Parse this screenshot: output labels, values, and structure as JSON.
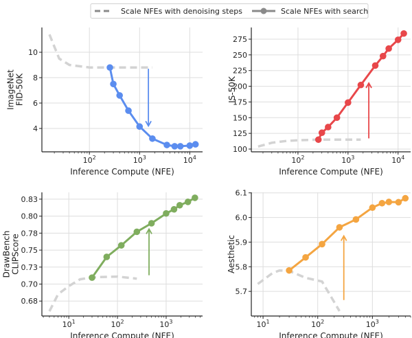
{
  "legend": {
    "placement": "top-center",
    "entries": [
      {
        "label": "Scale NFEs with denoising steps",
        "style": "dashed",
        "color": "#c8c8c8"
      },
      {
        "label": "Scale NFEs with search",
        "style": "line-marker",
        "color": "#8a8a8a"
      }
    ]
  },
  "chart_data": [
    {
      "type": "line",
      "xlabel": "Inference Compute (NFE)",
      "ylabel": [
        "ImageNet",
        "FID-50K"
      ],
      "xscale": "log",
      "xlim": [
        11.3,
        18000
      ],
      "ylim": [
        2.16,
        11.95
      ],
      "xticks": [
        {
          "value": 100,
          "base": "10",
          "exp": "2"
        },
        {
          "value": 1000,
          "base": "10",
          "exp": "3"
        },
        {
          "value": 10000,
          "base": "10",
          "exp": "4"
        }
      ],
      "yticks": [
        {
          "value": 4,
          "label": "4"
        },
        {
          "value": 6,
          "label": "6"
        },
        {
          "value": 8,
          "label": "8"
        },
        {
          "value": 10,
          "label": "10"
        }
      ],
      "grid": true,
      "color": "#5b8def",
      "series": [
        {
          "style": "dashed",
          "x": [
            16,
            25,
            40,
            100,
            250,
            1800
          ],
          "y": [
            11.4,
            9.5,
            9.0,
            8.8,
            8.8,
            8.8
          ]
        },
        {
          "style": "line-marker",
          "x": [
            256,
            300,
            400,
            600,
            1000,
            1800,
            3500,
            5000,
            6500,
            10000,
            13000
          ],
          "y": [
            8.8,
            7.5,
            6.6,
            5.4,
            4.15,
            3.2,
            2.7,
            2.6,
            2.6,
            2.65,
            2.75
          ]
        }
      ],
      "arrow": {
        "x": 1500,
        "y_from": 8.7,
        "y_to": 4.2
      }
    },
    {
      "type": "line",
      "xlabel": "Inference Compute (NFE)",
      "ylabel": [
        "IS-50K"
      ],
      "xscale": "log",
      "xlim": [
        11.7,
        17800
      ],
      "ylim": [
        95.6,
        293.6
      ],
      "xticks": [
        {
          "value": 100,
          "base": "10",
          "exp": "2"
        },
        {
          "value": 1000,
          "base": "10",
          "exp": "3"
        },
        {
          "value": 10000,
          "base": "10",
          "exp": "4"
        }
      ],
      "yticks": [
        {
          "value": 100,
          "label": "100"
        },
        {
          "value": 125,
          "label": "125"
        },
        {
          "value": 150,
          "label": "150"
        },
        {
          "value": 175,
          "label": "175"
        },
        {
          "value": 200,
          "label": "200"
        },
        {
          "value": 225,
          "label": "225"
        },
        {
          "value": 250,
          "label": "250"
        },
        {
          "value": 275,
          "label": "275"
        }
      ],
      "grid": true,
      "color": "#e8474a",
      "series": [
        {
          "style": "dashed",
          "x": [
            16,
            30,
            60,
            100,
            250,
            1800
          ],
          "y": [
            104,
            110,
            113,
            114,
            115,
            115
          ]
        },
        {
          "style": "line-marker",
          "x": [
            256,
            300,
            400,
            600,
            1000,
            1800,
            3500,
            5000,
            6500,
            10000,
            13000
          ],
          "y": [
            115,
            126,
            135,
            150,
            174,
            202,
            233,
            248,
            260,
            274,
            284
          ]
        }
      ],
      "arrow": {
        "x": 2600,
        "y_from": 117,
        "y_to": 205
      }
    },
    {
      "type": "line",
      "xlabel": "Inference Compute (NFE)",
      "ylabel": [
        "DrawBench",
        "CLIPScore"
      ],
      "xscale": "log",
      "xlim": [
        2.8,
        5600
      ],
      "ylim": [
        0.653,
        0.835
      ],
      "xticks": [
        {
          "value": 10,
          "base": "10",
          "exp": "1"
        },
        {
          "value": 100,
          "base": "10",
          "exp": "2"
        },
        {
          "value": 1000,
          "base": "10",
          "exp": "3"
        }
      ],
      "yticks": [
        {
          "value": 0.675,
          "label": "0.68"
        },
        {
          "value": 0.7,
          "label": "0.70"
        },
        {
          "value": 0.725,
          "label": "0.73"
        },
        {
          "value": 0.75,
          "label": "0.75"
        },
        {
          "value": 0.775,
          "label": "0.78"
        },
        {
          "value": 0.8,
          "label": "0.80"
        },
        {
          "value": 0.825,
          "label": "0.83"
        }
      ],
      "grid": true,
      "color": "#7fad5e",
      "series": [
        {
          "style": "dashed",
          "x": [
            4,
            6,
            10,
            17,
            30,
            100,
            250
          ],
          "y": [
            0.66,
            0.685,
            0.697,
            0.707,
            0.71,
            0.711,
            0.708
          ]
        },
        {
          "style": "line-marker",
          "x": [
            30,
            60,
            120,
            250,
            500,
            1000,
            1450,
            1900,
            2800,
            3900
          ],
          "y": [
            0.7095,
            0.74,
            0.757,
            0.777,
            0.7895,
            0.804,
            0.81,
            0.816,
            0.821,
            0.827
          ]
        }
      ],
      "arrow": {
        "x": 445,
        "y_from": 0.713,
        "y_to": 0.781
      }
    },
    {
      "type": "line",
      "xlabel": "Inference Compute (NFE)",
      "ylabel": [
        "Aesthetic"
      ],
      "xscale": "log",
      "xlim": [
        6.1,
        5000
      ],
      "ylim": [
        5.6,
        6.102
      ],
      "xticks": [
        {
          "value": 10,
          "base": "10",
          "exp": "1"
        },
        {
          "value": 100,
          "base": "10",
          "exp": "2"
        },
        {
          "value": 1000,
          "base": "10",
          "exp": "3"
        }
      ],
      "yticks": [
        {
          "value": 5.7,
          "label": "5.7"
        },
        {
          "value": 5.8,
          "label": "5.8"
        },
        {
          "value": 5.9,
          "label": "5.9"
        },
        {
          "value": 6.0,
          "label": "6.0"
        },
        {
          "value": 6.1,
          "label": "6.1"
        }
      ],
      "grid": true,
      "color": "#f4a541",
      "series": [
        {
          "style": "dashed",
          "x": [
            8,
            15,
            20,
            30,
            60,
            120,
            250
          ],
          "y": [
            5.73,
            5.775,
            5.785,
            5.783,
            5.755,
            5.74,
            5.62
          ]
        },
        {
          "style": "line-marker",
          "x": [
            30,
            60,
            120,
            250,
            500,
            1000,
            1500,
            2000,
            3000,
            4000
          ],
          "y": [
            5.785,
            5.838,
            5.892,
            5.96,
            5.992,
            6.04,
            6.058,
            6.063,
            6.062,
            6.078
          ]
        }
      ],
      "arrow": {
        "x": 300,
        "y_from": 5.665,
        "y_to": 5.925
      }
    }
  ]
}
